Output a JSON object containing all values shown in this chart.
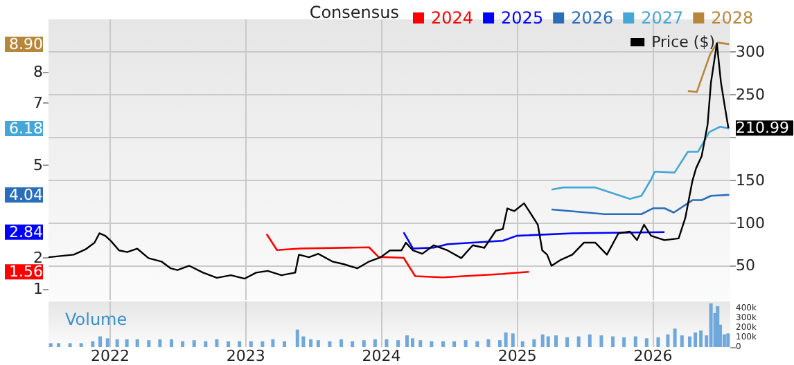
{
  "chart_data": [
    {
      "type": "line",
      "legend_title": "Consensus",
      "legend": "top right",
      "grid": true,
      "marker": "none",
      "tick_labels": "y",
      "xlim": [
        "2021-07-19",
        "2026-07-28"
      ],
      "xticks": [
        "2022",
        "2023",
        "2024",
        "2025",
        "2026"
      ],
      "ylim": [
        0.65,
        9.7
      ],
      "yticks": [
        1,
        2,
        5,
        7,
        8,
        {
          "value": 1.56,
          "label": "1.56"
        },
        {
          "value": 2.84,
          "label": "2.84"
        },
        {
          "value": 4.04,
          "label": "4.04"
        },
        {
          "value": 6.18,
          "label": "6.18"
        },
        {
          "value": 8.9,
          "label": "8.90"
        }
      ],
      "y2lim": [
        10,
        338
      ],
      "y2ticks": [
        50,
        100,
        150,
        {
          "value": 200,
          "label": null
        },
        250,
        300,
        {
          "value": 210.99,
          "label": "210.99"
        }
      ],
      "series": [
        {
          "name": "2024",
          "color": "#ff0000",
          "x": [
            "2023-02-26",
            "2023-03-26",
            "2023-05-27",
            "2023-11-29",
            "2023-12-24",
            "2024-03-01",
            "2024-04-01",
            "2024-06-15",
            "2024-11-23",
            "2024-12-18",
            "2025-02-01"
          ],
          "values": [
            2.78,
            2.26,
            2.31,
            2.35,
            2.04,
            2.01,
            1.42,
            1.38,
            1.49,
            1.52,
            1.56
          ]
        },
        {
          "name": "2025",
          "color": "#0000ff",
          "x": [
            "2024-03-01",
            "2024-03-26",
            "2024-05-21",
            "2024-06-27",
            "2024-11-23",
            "2024-12-30",
            "2025-05-29",
            "2026-02-01"
          ],
          "values": [
            2.83,
            2.31,
            2.34,
            2.45,
            2.56,
            2.72,
            2.8,
            2.84
          ]
        },
        {
          "name": "2026",
          "color": "#2a6ebb",
          "x": [
            "2025-04-03",
            "2025-08-24",
            "2025-12-01",
            "2026-01-02",
            "2026-02-01",
            "2026-02-26",
            "2026-04-17",
            "2026-05-12",
            "2026-06-06",
            "2026-07-25"
          ],
          "values": [
            3.57,
            3.42,
            3.42,
            3.61,
            3.61,
            3.47,
            3.87,
            3.87,
            4.01,
            4.04
          ]
        },
        {
          "name": "2027",
          "color": "#45a6d8",
          "x": [
            "2025-04-03",
            "2025-05-05",
            "2025-07-30",
            "2025-10-31",
            "2025-12-01",
            "2025-12-27",
            "2026-01-06",
            "2026-02-28",
            "2026-04-05",
            "2026-05-02",
            "2026-06-02",
            "2026-07-01",
            "2026-07-25"
          ],
          "values": [
            4.21,
            4.28,
            4.28,
            3.91,
            4.01,
            4.54,
            4.79,
            4.76,
            5.43,
            5.43,
            6.07,
            6.24,
            6.18
          ]
        },
        {
          "name": "2028",
          "color": "#b8863b",
          "x": [
            "2026-04-05",
            "2026-04-29",
            "2026-06-04",
            "2026-06-24",
            "2026-07-25"
          ],
          "values": [
            7.39,
            7.36,
            8.58,
            8.95,
            8.9
          ]
        },
        {
          "name": "Price ($)",
          "color": "#000000",
          "axis": "y2",
          "x": [
            "2021-07-19",
            "2021-09-25",
            "2021-10-26",
            "2021-11-20",
            "2021-12-03",
            "2021-12-19",
            "2022-01-03",
            "2022-01-25",
            "2022-02-16",
            "2022-03-15",
            "2022-04-14",
            "2022-05-19",
            "2022-06-13",
            "2022-07-01",
            "2022-08-02",
            "2022-09-08",
            "2022-10-15",
            "2022-11-22",
            "2022-12-29",
            "2023-01-29",
            "2023-03-01",
            "2023-04-07",
            "2023-05-14",
            "2023-05-24",
            "2023-06-20",
            "2023-07-15",
            "2023-08-22",
            "2023-09-21",
            "2023-10-28",
            "2023-11-29",
            "2023-12-30",
            "2024-01-24",
            "2024-02-24",
            "2024-03-07",
            "2024-03-26",
            "2024-04-20",
            "2024-05-21",
            "2024-06-27",
            "2024-08-03",
            "2024-09-03",
            "2024-10-04",
            "2024-11-04",
            "2024-11-23",
            "2024-12-05",
            "2024-12-24",
            "2025-01-19",
            "2025-02-06",
            "2025-02-25",
            "2025-03-09",
            "2025-03-22",
            "2025-04-03",
            "2025-04-28",
            "2025-05-29",
            "2025-06-29",
            "2025-07-30",
            "2025-08-30",
            "2025-09-30",
            "2025-10-31",
            "2025-11-19",
            "2025-12-08",
            "2025-12-27",
            "2026-02-01",
            "2026-03-11",
            "2026-03-29",
            "2026-04-17",
            "2026-04-27",
            "2026-05-12",
            "2026-05-28",
            "2026-06-06",
            "2026-06-22",
            "2026-07-03",
            "2026-07-13",
            "2026-07-23"
          ],
          "values": [
            60,
            63,
            69,
            77,
            88,
            85,
            79,
            68,
            66,
            70,
            59,
            55,
            47,
            45,
            50,
            42,
            36,
            39,
            35,
            42,
            44,
            39,
            42,
            63,
            60,
            64,
            55,
            52,
            47,
            55,
            60,
            68,
            68,
            77,
            68,
            64,
            74,
            68,
            59,
            74,
            71,
            91,
            93,
            117,
            114,
            123,
            111,
            98,
            68,
            63,
            50,
            57,
            63,
            77,
            77,
            63,
            88,
            90,
            80,
            98,
            85,
            80,
            82,
            106,
            149,
            164,
            178,
            215,
            264,
            310,
            264,
            237,
            210.99
          ]
        }
      ]
    },
    {
      "type": "bar",
      "title": "Volume",
      "grid": "x",
      "x": [
        "2021-07-25",
        "2021-08-15",
        "2021-09-15",
        "2021-10-15",
        "2021-11-15",
        "2021-12-05",
        "2021-12-25",
        "2022-01-20",
        "2022-02-15",
        "2022-03-15",
        "2022-04-15",
        "2022-05-15",
        "2022-06-15",
        "2022-07-15",
        "2022-08-15",
        "2022-09-15",
        "2022-10-15",
        "2022-11-15",
        "2022-12-15",
        "2023-01-15",
        "2023-02-15",
        "2023-03-15",
        "2023-04-15",
        "2023-05-20",
        "2023-06-05",
        "2023-06-25",
        "2023-07-15",
        "2023-08-15",
        "2023-09-15",
        "2023-10-15",
        "2023-11-15",
        "2023-12-15",
        "2024-01-15",
        "2024-02-15",
        "2024-03-10",
        "2024-03-25",
        "2024-04-15",
        "2024-05-15",
        "2024-06-15",
        "2024-07-15",
        "2024-08-15",
        "2024-09-15",
        "2024-10-15",
        "2024-11-15",
        "2024-12-01",
        "2024-12-20",
        "2025-01-15",
        "2025-02-15",
        "2025-03-10",
        "2025-03-25",
        "2025-04-15",
        "2025-05-15",
        "2025-06-15",
        "2025-07-15",
        "2025-08-15",
        "2025-09-15",
        "2025-10-15",
        "2025-11-15",
        "2025-12-15",
        "2026-01-15",
        "2026-02-10",
        "2026-03-01",
        "2026-03-20",
        "2026-04-10",
        "2026-04-25",
        "2026-05-10",
        "2026-05-25",
        "2026-06-06",
        "2026-06-17",
        "2026-06-24",
        "2026-07-01",
        "2026-07-12",
        "2026-07-22"
      ],
      "xlim": [
        "2021-07-19",
        "2026-07-28"
      ],
      "xticks": [
        "2022",
        "2023",
        "2024",
        "2025",
        "2026"
      ],
      "y2lim": [
        0,
        470000
      ],
      "y2ticks": [
        0,
        {
          "value": 100000,
          "label": "100k"
        },
        {
          "value": 200000,
          "label": "200k"
        },
        {
          "value": 300000,
          "label": "300k"
        },
        {
          "value": 400000,
          "label": "400k"
        }
      ],
      "series": [
        {
          "color": "#6fa8dc",
          "axis": "y2",
          "values": [
            40000,
            40000,
            40000,
            40000,
            60000,
            110000,
            90000,
            80000,
            80000,
            80000,
            70000,
            80000,
            80000,
            60000,
            70000,
            60000,
            80000,
            60000,
            60000,
            60000,
            60000,
            80000,
            60000,
            180000,
            110000,
            80000,
            70000,
            60000,
            80000,
            60000,
            70000,
            80000,
            80000,
            70000,
            120000,
            90000,
            70000,
            60000,
            60000,
            60000,
            70000,
            60000,
            80000,
            70000,
            150000,
            140000,
            60000,
            80000,
            130000,
            110000,
            120000,
            100000,
            110000,
            130000,
            120000,
            110000,
            100000,
            110000,
            90000,
            100000,
            130000,
            190000,
            120000,
            110000,
            150000,
            170000,
            120000,
            450000,
            350000,
            420000,
            230000,
            130000,
            140000
          ]
        }
      ]
    }
  ]
}
